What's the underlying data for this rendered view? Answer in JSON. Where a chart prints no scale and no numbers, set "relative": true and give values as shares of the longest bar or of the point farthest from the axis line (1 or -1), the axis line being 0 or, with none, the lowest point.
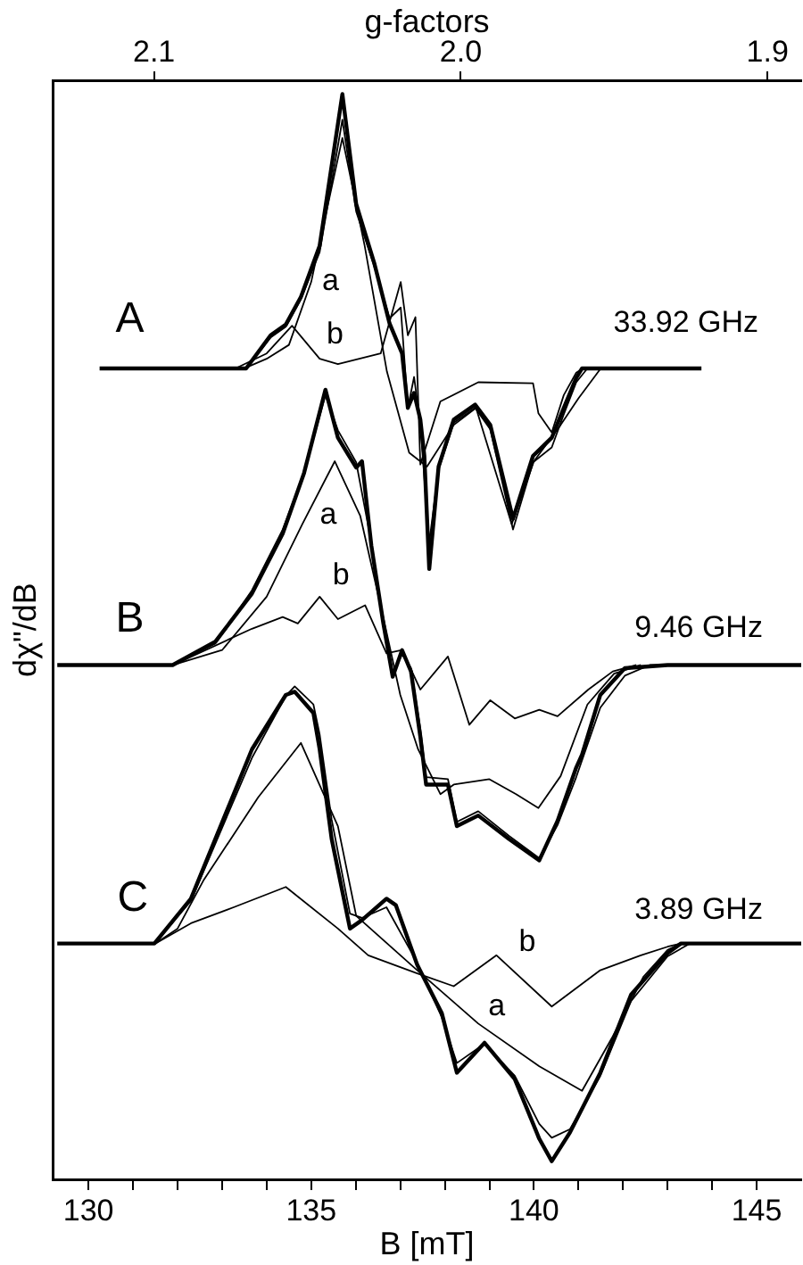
{
  "chart_data": {
    "type": "line",
    "relative": true,
    "xlabel": "B [mT]",
    "ylabel": "dχ\"/dB",
    "x2label": "g-factors",
    "xlim": [
      129.2,
      146
    ],
    "xticks": [
      130,
      {
        "value": 131,
        "label": null
      },
      {
        "value": 132,
        "label": null
      },
      {
        "value": 133,
        "label": null
      },
      {
        "value": 134,
        "label": null
      },
      135,
      {
        "value": 136,
        "label": null
      },
      {
        "value": 137,
        "label": null
      },
      {
        "value": 138,
        "label": null
      },
      {
        "value": 139,
        "label": null
      },
      140,
      {
        "value": 141,
        "label": null
      },
      {
        "value": 142,
        "label": null
      },
      {
        "value": 143,
        "label": null
      },
      {
        "value": 144,
        "label": null
      },
      145
    ],
    "x2lim": [
      2.133,
      1.889
    ],
    "x2ticks": [
      2.1,
      {
        "value": 2.0,
        "label": "2.0"
      },
      1.9
    ],
    "tick_labels": "x",
    "series": [
      {
        "color": "#000000",
        "x": [
          130.25,
          133.54,
          134.09,
          134.43,
          134.77,
          135.19,
          135.7,
          136.01,
          136.42,
          136.76,
          137.04,
          137.17,
          137.31,
          137.45,
          137.54,
          137.65,
          137.86,
          138.2,
          138.68,
          139.02,
          139.53,
          139.98,
          140.4,
          140.67,
          140.95,
          141.08,
          143.76
        ],
        "values": [
          0.743,
          0.743,
          0.774,
          0.784,
          0.81,
          0.858,
          1.0,
          0.897,
          0.841,
          0.785,
          0.757,
          0.706,
          0.72,
          0.695,
          0.661,
          0.555,
          0.651,
          0.695,
          0.709,
          0.69,
          0.602,
          0.661,
          0.678,
          0.706,
          0.734,
          0.743,
          0.743
        ]
      },
      {
        "color": "#000000",
        "x": [
          133.0,
          133.54,
          134.09,
          134.43,
          134.77,
          135.19,
          135.7,
          136.01,
          136.42,
          136.76,
          137.01,
          137.17,
          137.31,
          137.45,
          137.65,
          137.86,
          138.2,
          138.68,
          139.02,
          139.53,
          139.98,
          140.4,
          140.67,
          140.95,
          141.2,
          143.0
        ],
        "values": [
          0.743,
          0.743,
          0.772,
          0.782,
          0.808,
          0.852,
          0.976,
          0.89,
          0.838,
          0.79,
          0.8,
          0.706,
          0.735,
          0.69,
          0.58,
          0.648,
          0.692,
          0.706,
          0.686,
          0.592,
          0.655,
          0.669,
          0.7,
          0.73,
          0.743,
          0.743
        ]
      },
      {
        "color": "#000000",
        "x": [
          133.5,
          134.0,
          134.5,
          135.0,
          135.7,
          136.2,
          136.7,
          137.2,
          137.6,
          138.2,
          138.7,
          139.5,
          140.0,
          140.6,
          141.0,
          141.5,
          142.5
        ],
        "values": [
          0.743,
          0.752,
          0.765,
          0.824,
          0.959,
          0.858,
          0.74,
          0.664,
          0.651,
          0.69,
          0.706,
          0.597,
          0.656,
          0.69,
          0.715,
          0.743,
          0.743
        ]
      },
      {
        "color": "#000000",
        "x": [
          133.3,
          134.0,
          134.57,
          135.19,
          135.6,
          136.56,
          137.01,
          137.17,
          137.34,
          137.45,
          137.9,
          138.75,
          139.98,
          140.1,
          140.4,
          140.67,
          140.95,
          141.1,
          142.5
        ],
        "values": [
          0.743,
          0.757,
          0.783,
          0.752,
          0.747,
          0.757,
          0.824,
          0.774,
          0.791,
          0.653,
          0.712,
          0.73,
          0.729,
          0.701,
          0.683,
          0.718,
          0.739,
          0.743,
          0.743
        ]
      },
      {
        "color": "#000000",
        "x": [
          129.3,
          131.89,
          132.85,
          133.67,
          134.36,
          134.84,
          135.32,
          135.6,
          136.01,
          136.14,
          136.35,
          136.62,
          136.83,
          137.04,
          137.24,
          137.45,
          137.58,
          138.07,
          138.27,
          138.75,
          139.44,
          140.12,
          140.53,
          140.95,
          141.08,
          141.49,
          142.04,
          143.0,
          146.0
        ],
        "values": [
          0.465,
          0.465,
          0.487,
          0.532,
          0.588,
          0.645,
          0.723,
          0.678,
          0.65,
          0.656,
          0.577,
          0.504,
          0.454,
          0.479,
          0.459,
          0.398,
          0.353,
          0.353,
          0.314,
          0.324,
          0.302,
          0.282,
          0.319,
          0.369,
          0.381,
          0.437,
          0.462,
          0.465,
          0.465
        ]
      },
      {
        "color": "#000000",
        "x": [
          131.89,
          132.85,
          133.67,
          134.36,
          134.84,
          135.32,
          135.6,
          136.01,
          136.35,
          136.62,
          136.83,
          137.04,
          137.24,
          137.45,
          137.58,
          138.07,
          138.27,
          138.75,
          139.44,
          140.12,
          140.53,
          140.95,
          141.49,
          142.04,
          142.6,
          143.5
        ],
        "values": [
          0.465,
          0.485,
          0.535,
          0.592,
          0.645,
          0.718,
          0.685,
          0.655,
          0.58,
          0.505,
          0.458,
          0.475,
          0.462,
          0.405,
          0.36,
          0.358,
          0.318,
          0.328,
          0.305,
          0.284,
          0.315,
          0.36,
          0.425,
          0.455,
          0.465,
          0.465
        ]
      },
      {
        "color": "#000000",
        "x": [
          131.9,
          133.0,
          134.0,
          134.8,
          135.53,
          136.1,
          136.6,
          137.0,
          137.4,
          137.9,
          138.2,
          139.0,
          139.6,
          140.1,
          140.6,
          141.2,
          141.8,
          142.4
        ],
        "values": [
          0.465,
          0.479,
          0.529,
          0.597,
          0.656,
          0.605,
          0.513,
          0.437,
          0.386,
          0.344,
          0.353,
          0.358,
          0.344,
          0.331,
          0.361,
          0.428,
          0.457,
          0.465
        ]
      },
      {
        "color": "#000000",
        "x": [
          131.9,
          133.67,
          134.36,
          134.7,
          135.19,
          135.6,
          136.21,
          136.69,
          137.04,
          137.45,
          138.07,
          138.55,
          139.02,
          139.57,
          140.12,
          140.53,
          141.22,
          141.77,
          142.3
        ],
        "values": [
          0.465,
          0.499,
          0.51,
          0.504,
          0.529,
          0.508,
          0.521,
          0.476,
          0.479,
          0.442,
          0.473,
          0.409,
          0.432,
          0.415,
          0.423,
          0.417,
          0.442,
          0.459,
          0.465
        ]
      },
      {
        "color": "#000000",
        "x": [
          129.3,
          131.48,
          132.3,
          133.67,
          134.43,
          134.63,
          135.05,
          135.19,
          135.46,
          135.87,
          136.14,
          136.69,
          136.9,
          137.38,
          137.93,
          138.27,
          138.89,
          139.57,
          140.12,
          140.4,
          140.81,
          141.49,
          142.18,
          143.0,
          143.3,
          146.0
        ],
        "values": [
          0.204,
          0.204,
          0.246,
          0.386,
          0.437,
          0.44,
          0.42,
          0.386,
          0.302,
          0.218,
          0.226,
          0.246,
          0.24,
          0.184,
          0.139,
          0.083,
          0.111,
          0.077,
          0.021,
          0.0,
          0.027,
          0.083,
          0.156,
          0.195,
          0.204,
          0.204
        ]
      },
      {
        "color": "#000000",
        "x": [
          131.48,
          132.3,
          133.67,
          134.43,
          134.63,
          135.05,
          135.19,
          135.46,
          135.87,
          136.14,
          136.69,
          137.38,
          137.93,
          138.27,
          138.89,
          139.57,
          140.12,
          140.4,
          140.81,
          141.49,
          142.18,
          143.0,
          143.5
        ],
        "values": [
          0.204,
          0.244,
          0.378,
          0.436,
          0.445,
          0.428,
          0.4,
          0.32,
          0.232,
          0.228,
          0.238,
          0.186,
          0.135,
          0.092,
          0.11,
          0.08,
          0.035,
          0.022,
          0.03,
          0.08,
          0.15,
          0.192,
          0.204
        ]
      },
      {
        "color": "#000000",
        "x": [
          131.5,
          132.0,
          132.58,
          133.81,
          134.77,
          135.6,
          136.01,
          137.38,
          138.75,
          140.12,
          141.08,
          141.77,
          142.46,
          143.0,
          143.3
        ],
        "values": [
          0.204,
          0.218,
          0.263,
          0.341,
          0.392,
          0.314,
          0.23,
          0.179,
          0.129,
          0.089,
          0.066,
          0.117,
          0.173,
          0.198,
          0.204
        ]
      },
      {
        "color": "#000000",
        "x": [
          131.5,
          132.3,
          133.26,
          134.43,
          135.6,
          136.28,
          137.38,
          138.2,
          139.16,
          140.4,
          141.49,
          142.4,
          143.0,
          143.3
        ],
        "values": [
          0.204,
          0.223,
          0.238,
          0.257,
          0.218,
          0.193,
          0.176,
          0.164,
          0.193,
          0.145,
          0.179,
          0.193,
          0.201,
          0.204
        ]
      }
    ],
    "annotations": [
      "A",
      "33.92 GHz",
      "a",
      "b",
      "B",
      "9.46 GHz",
      "a",
      "b",
      "C",
      "3.89 GHz",
      "b",
      "a"
    ]
  }
}
